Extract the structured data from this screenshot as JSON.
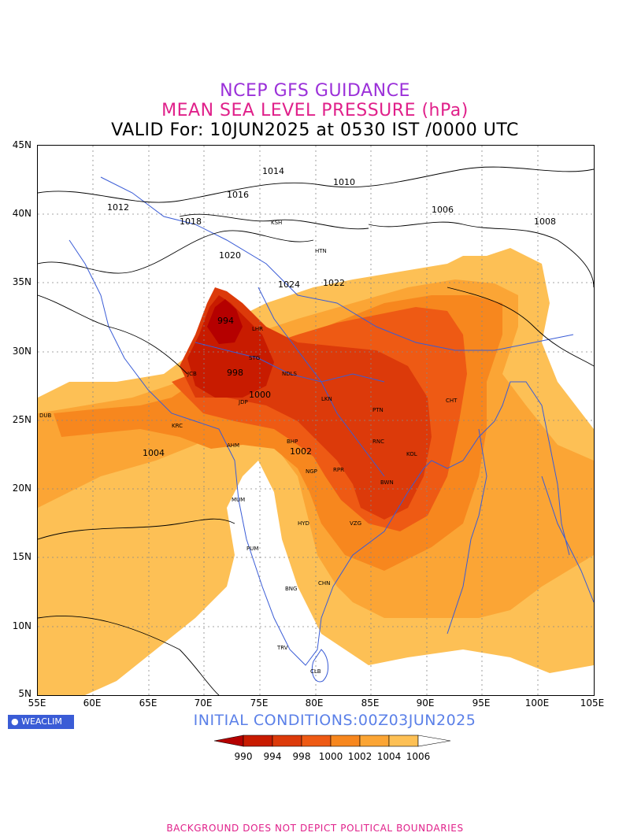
{
  "titles": {
    "line1": "NCEP GFS GUIDANCE",
    "line2": "MEAN SEA LEVEL PRESSURE (hPa)",
    "line3": "VALID For: 10JUN2025 at 0530 IST /0000 UTC"
  },
  "axes": {
    "lat_labels": [
      "45N",
      "40N",
      "35N",
      "30N",
      "25N",
      "20N",
      "15N",
      "10N",
      "5N"
    ],
    "lon_labels": [
      "55E",
      "60E",
      "65E",
      "70E",
      "75E",
      "80E",
      "85E",
      "90E",
      "95E",
      "100E",
      "105E"
    ]
  },
  "logo": {
    "text": "WEACLIM"
  },
  "initial_conditions": "INITIAL CONDITIONS:00Z03JUN2025",
  "legend": {
    "labels": [
      "990",
      "994",
      "998",
      "1000",
      "1002",
      "1004",
      "1006"
    ],
    "colors": [
      "#b50000",
      "#c81b00",
      "#dc3a0a",
      "#ee5a14",
      "#f7871e",
      "#fba535",
      "#fdc055",
      "#ffffff"
    ]
  },
  "contour_labels": [
    "1012",
    "1014",
    "1016",
    "1018",
    "1010",
    "1008",
    "1006",
    "1020",
    "1022",
    "1024",
    "994",
    "998",
    "1000",
    "1002",
    "1004"
  ],
  "cities": [
    "HTN",
    "KSH",
    "LHR",
    "STG",
    "NDLS",
    "JCB",
    "JDP",
    "LKN",
    "PTN",
    "KRC",
    "AHM",
    "RNC",
    "KOL",
    "BWN",
    "RPR",
    "NGP",
    "BHP",
    "MUM",
    "PUM",
    "HYD",
    "VZG",
    "BNG",
    "CHN",
    "TRV",
    "CLB",
    "CHT",
    "DUB"
  ],
  "footer": "BACKGROUND DOES NOT DEPICT POLITICAL BOUNDARIES"
}
